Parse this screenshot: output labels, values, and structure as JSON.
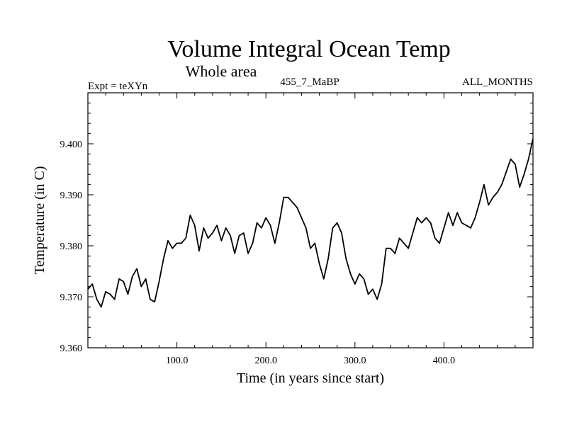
{
  "header": {
    "title": "Volume Integral Ocean Temp",
    "subtitle": "Whole area",
    "expt_label": "Expt = teXYn",
    "run_label": "455_7_MaBP",
    "months_label": "ALL_MONTHS"
  },
  "chart_data": {
    "type": "line",
    "xlabel": "Time (in years since start)",
    "ylabel": "Temperature (in C)",
    "xlim": [
      0,
      500
    ],
    "ylim": [
      9.36,
      9.41
    ],
    "x_ticks": [
      100,
      200,
      300,
      400
    ],
    "x_tick_labels": [
      "100.0",
      "200.0",
      "300.0",
      "400.0"
    ],
    "y_ticks": [
      9.36,
      9.37,
      9.38,
      9.39,
      9.4
    ],
    "y_tick_labels": [
      "9.360",
      "9.370",
      "9.380",
      "9.390",
      "9.400"
    ],
    "grid": false,
    "line_color": "#000000",
    "series": [
      {
        "x": [
          0,
          5,
          10,
          15,
          20,
          25,
          30,
          35,
          40,
          45,
          50,
          55,
          60,
          65,
          70,
          75,
          80,
          85,
          90,
          95,
          100,
          105,
          110,
          115,
          120,
          125,
          130,
          135,
          140,
          145,
          150,
          155,
          160,
          165,
          170,
          175,
          180,
          185,
          190,
          195,
          200,
          205,
          210,
          215,
          220,
          225,
          230,
          235,
          240,
          245,
          250,
          255,
          260,
          265,
          270,
          275,
          280,
          285,
          290,
          295,
          300,
          305,
          310,
          315,
          320,
          325,
          330,
          335,
          340,
          345,
          350,
          355,
          360,
          365,
          370,
          375,
          380,
          385,
          390,
          395,
          400,
          405,
          410,
          415,
          420,
          425,
          430,
          435,
          440,
          445,
          450,
          455,
          460,
          465,
          470,
          475,
          480,
          485,
          490,
          495,
          500
        ],
        "values": [
          9.3715,
          9.3725,
          9.3695,
          9.368,
          9.371,
          9.3705,
          9.3695,
          9.3735,
          9.373,
          9.3705,
          9.374,
          9.3755,
          9.372,
          9.3735,
          9.3695,
          9.369,
          9.373,
          9.3775,
          9.381,
          9.3795,
          9.3805,
          9.3805,
          9.3815,
          9.386,
          9.384,
          9.379,
          9.3835,
          9.3815,
          9.3825,
          9.384,
          9.381,
          9.3835,
          9.382,
          9.3785,
          9.382,
          9.3825,
          9.3785,
          9.3805,
          9.3845,
          9.3835,
          9.3855,
          9.384,
          9.3805,
          9.3845,
          9.3895,
          9.3895,
          9.3885,
          9.3875,
          9.3855,
          9.3835,
          9.3795,
          9.3805,
          9.3765,
          9.3735,
          9.3775,
          9.3835,
          9.3845,
          9.3825,
          9.3775,
          9.3745,
          9.3725,
          9.3745,
          9.3735,
          9.3705,
          9.3715,
          9.3695,
          9.3725,
          9.3795,
          9.3795,
          9.3785,
          9.3815,
          9.3805,
          9.3795,
          9.3825,
          9.3855,
          9.3845,
          9.3855,
          9.3845,
          9.3815,
          9.3805,
          9.3835,
          9.3865,
          9.384,
          9.3865,
          9.3845,
          9.384,
          9.3835,
          9.3855,
          9.3885,
          9.392,
          9.388,
          9.3895,
          9.3905,
          9.392,
          9.3945,
          9.397,
          9.396,
          9.3915,
          9.394,
          9.397,
          9.401
        ]
      }
    ]
  }
}
